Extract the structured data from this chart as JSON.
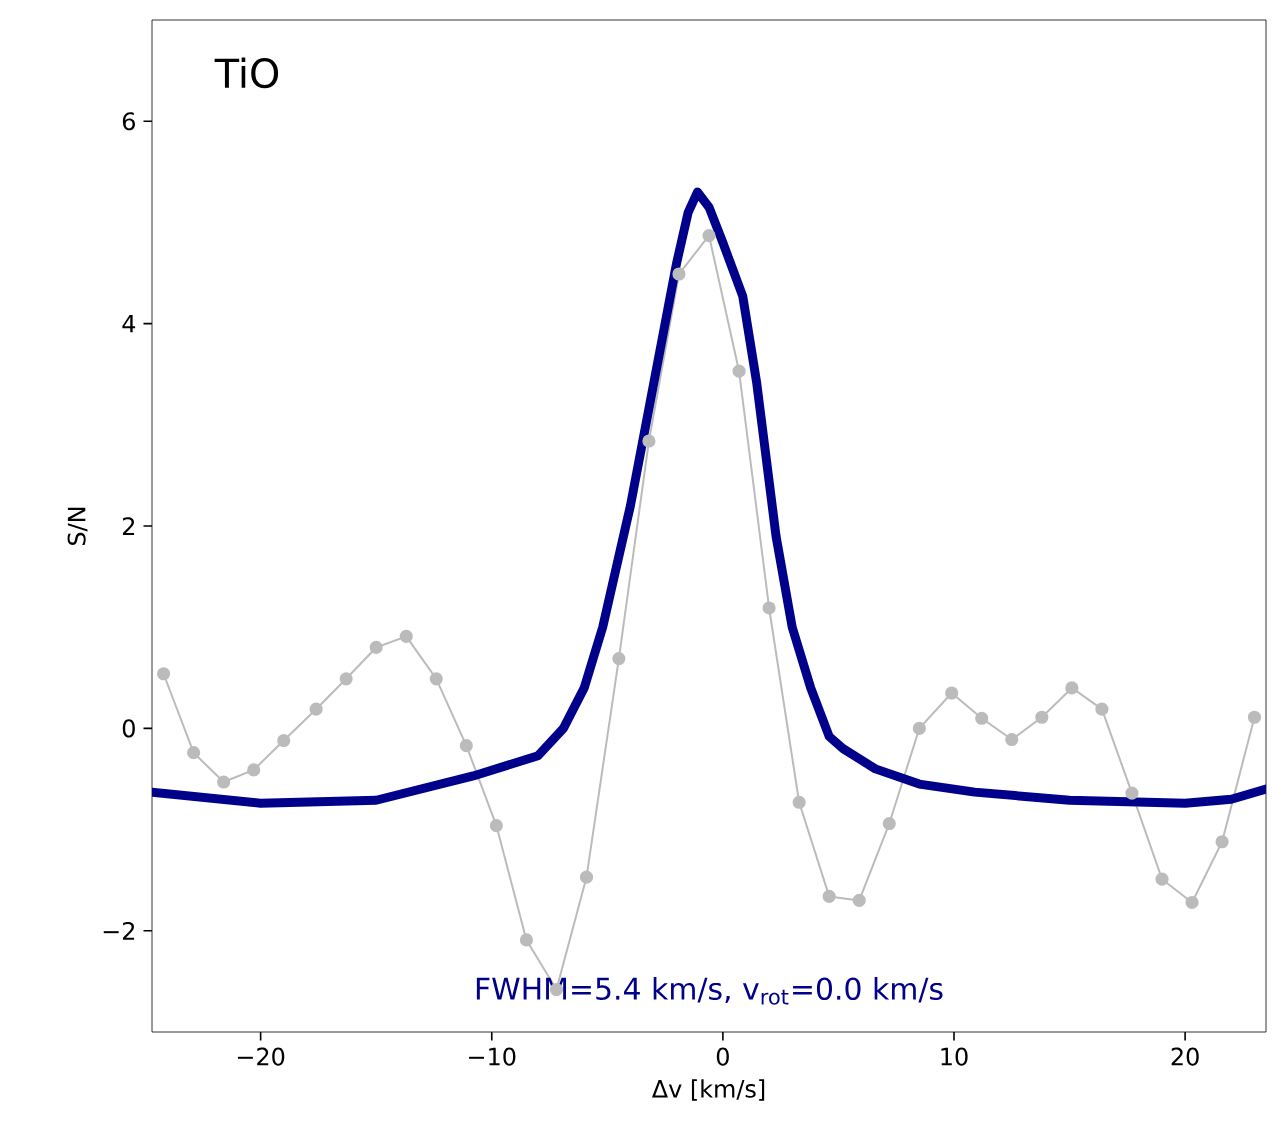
{
  "chart_data": {
    "type": "line",
    "xlabel": "Δv [km/s]",
    "ylabel": "S/N",
    "annotations": [
      "TiO",
      "FWHM=5.4 km/s, v$_{rot}$=0.0 km/s"
    ],
    "xlim": [
      -24.7,
      23.5
    ],
    "ylim": [
      -3,
      7
    ],
    "xticks": [
      {
        "value": -20,
        "label": "−20"
      },
      {
        "value": -10,
        "label": "−10"
      },
      0,
      10,
      20
    ],
    "yticks": [
      {
        "value": -2,
        "label": "−2"
      },
      0,
      2,
      4,
      6
    ],
    "series": [
      {
        "color": "#bbbbbb",
        "marker": "circle",
        "x": [
          -24.2,
          -22.9,
          -21.6,
          -20.3,
          -19.0,
          -17.6,
          -16.3,
          -15.0,
          -13.7,
          -12.4,
          -11.1,
          -9.8,
          -8.5,
          -7.2,
          -5.9,
          -4.5,
          -3.2,
          -1.9,
          -0.6,
          0.7,
          2.0,
          3.3,
          4.6,
          5.9,
          7.2,
          8.5,
          9.9,
          11.2,
          12.5,
          13.8,
          15.1,
          16.4,
          17.7,
          19.0,
          20.3,
          21.6,
          23.0
        ],
        "values": [
          0.54,
          -0.24,
          -0.53,
          -0.41,
          -0.12,
          0.19,
          0.49,
          0.8,
          0.91,
          0.49,
          -0.17,
          -0.96,
          -2.09,
          -2.58,
          -1.47,
          0.69,
          2.84,
          4.49,
          4.87,
          3.53,
          1.19,
          -0.73,
          -1.66,
          -1.7,
          -0.94,
          0.0,
          0.35,
          0.1,
          -0.11,
          0.11,
          0.4,
          0.19,
          -0.64,
          -1.49,
          -1.72,
          -1.12,
          0.11
        ]
      },
      {
        "color": "#00008b",
        "marker": "none",
        "x": [
          -24.7,
          -20,
          -15,
          -10.8,
          -8,
          -6.9,
          -6,
          -5.2,
          -4.5,
          -4,
          -3,
          -2,
          -1.5,
          -1.1,
          -0.6,
          0,
          0.86,
          1.46,
          2.3,
          3,
          3.8,
          4.6,
          5.2,
          6.6,
          8.5,
          10.9,
          15,
          20,
          22,
          23.5
        ],
        "values": [
          -0.63,
          -0.74,
          -0.71,
          -0.47,
          -0.27,
          0.0,
          0.4,
          1.0,
          1.7,
          2.2,
          3.4,
          4.6,
          5.1,
          5.3,
          5.15,
          4.8,
          4.27,
          3.42,
          1.9,
          1.0,
          0.4,
          -0.08,
          -0.2,
          -0.4,
          -0.55,
          -0.63,
          -0.71,
          -0.74,
          -0.7,
          -0.6
        ]
      }
    ]
  }
}
